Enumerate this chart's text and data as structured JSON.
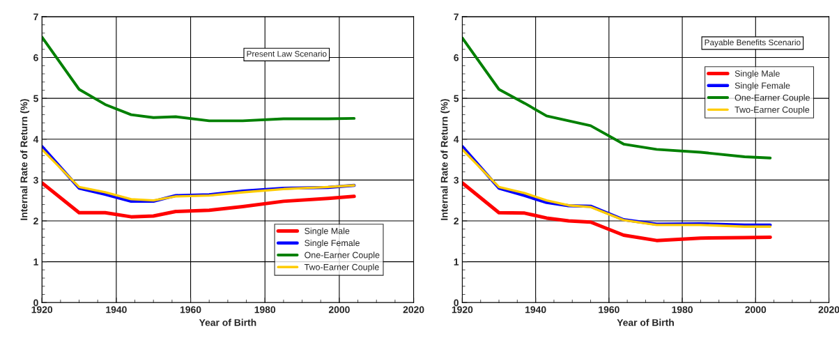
{
  "chart_data": [
    {
      "type": "line",
      "xlabel": "Year of Birth",
      "ylabel": "Internal Rate of Return (%)",
      "annotations": [
        "Present Law Scenario"
      ],
      "x": [
        1920,
        1930,
        1937,
        1944,
        1950,
        1956,
        1965,
        1974,
        1985,
        1997,
        2004
      ],
      "xlim": [
        1920,
        2020
      ],
      "xticks": [
        1920,
        1940,
        1960,
        1980,
        2000,
        2020
      ],
      "ylim": [
        0,
        7
      ],
      "yticks": [
        0,
        1,
        2,
        3,
        4,
        5,
        6,
        7
      ],
      "grid": true,
      "legend": "lower right",
      "series": [
        {
          "name": "Single Male",
          "color": "#ff0000",
          "values": [
            2.93,
            2.2,
            2.2,
            2.1,
            2.12,
            2.23,
            2.26,
            2.35,
            2.48,
            2.55,
            2.6
          ]
        },
        {
          "name": "Single Female",
          "color": "#0000ff",
          "values": [
            3.82,
            2.8,
            2.65,
            2.48,
            2.48,
            2.62,
            2.64,
            2.73,
            2.8,
            2.82,
            2.87
          ]
        },
        {
          "name": "One-Earner Couple",
          "color": "#008000",
          "values": [
            6.5,
            5.22,
            4.85,
            4.6,
            4.53,
            4.55,
            4.45,
            4.45,
            4.5,
            4.5,
            4.51
          ]
        },
        {
          "name": "Two-Earner Couple",
          "color": "#ffcc00",
          "values": [
            3.75,
            2.83,
            2.7,
            2.53,
            2.5,
            2.6,
            2.62,
            2.7,
            2.78,
            2.83,
            2.87
          ]
        }
      ]
    },
    {
      "type": "line",
      "xlabel": "Year of Birth",
      "ylabel": "Internal Rate of Return (%)",
      "annotations": [
        "Payable Benefits Scenario"
      ],
      "x": [
        1920,
        1930,
        1937,
        1943,
        1949,
        1955,
        1964,
        1973,
        1985,
        1997,
        2004
      ],
      "xlim": [
        1920,
        2020
      ],
      "xticks": [
        1920,
        1940,
        1960,
        1980,
        2000,
        2020
      ],
      "ylim": [
        0,
        7
      ],
      "yticks": [
        0,
        1,
        2,
        3,
        4,
        5,
        6,
        7
      ],
      "grid": true,
      "legend": "upper right",
      "series": [
        {
          "name": "Single Male",
          "color": "#ff0000",
          "values": [
            2.93,
            2.2,
            2.19,
            2.07,
            2.0,
            1.97,
            1.65,
            1.52,
            1.58,
            1.59,
            1.6
          ]
        },
        {
          "name": "Single Female",
          "color": "#0000ff",
          "values": [
            3.82,
            2.8,
            2.62,
            2.45,
            2.37,
            2.36,
            2.03,
            1.92,
            1.93,
            1.9,
            1.9
          ]
        },
        {
          "name": "One-Earner Couple",
          "color": "#008000",
          "values": [
            6.48,
            5.22,
            4.88,
            4.57,
            4.45,
            4.33,
            3.88,
            3.75,
            3.68,
            3.57,
            3.54
          ]
        },
        {
          "name": "Two-Earner Couple",
          "color": "#ffcc00",
          "values": [
            3.75,
            2.83,
            2.68,
            2.5,
            2.38,
            2.34,
            2.02,
            1.9,
            1.9,
            1.86,
            1.86
          ]
        }
      ]
    }
  ]
}
